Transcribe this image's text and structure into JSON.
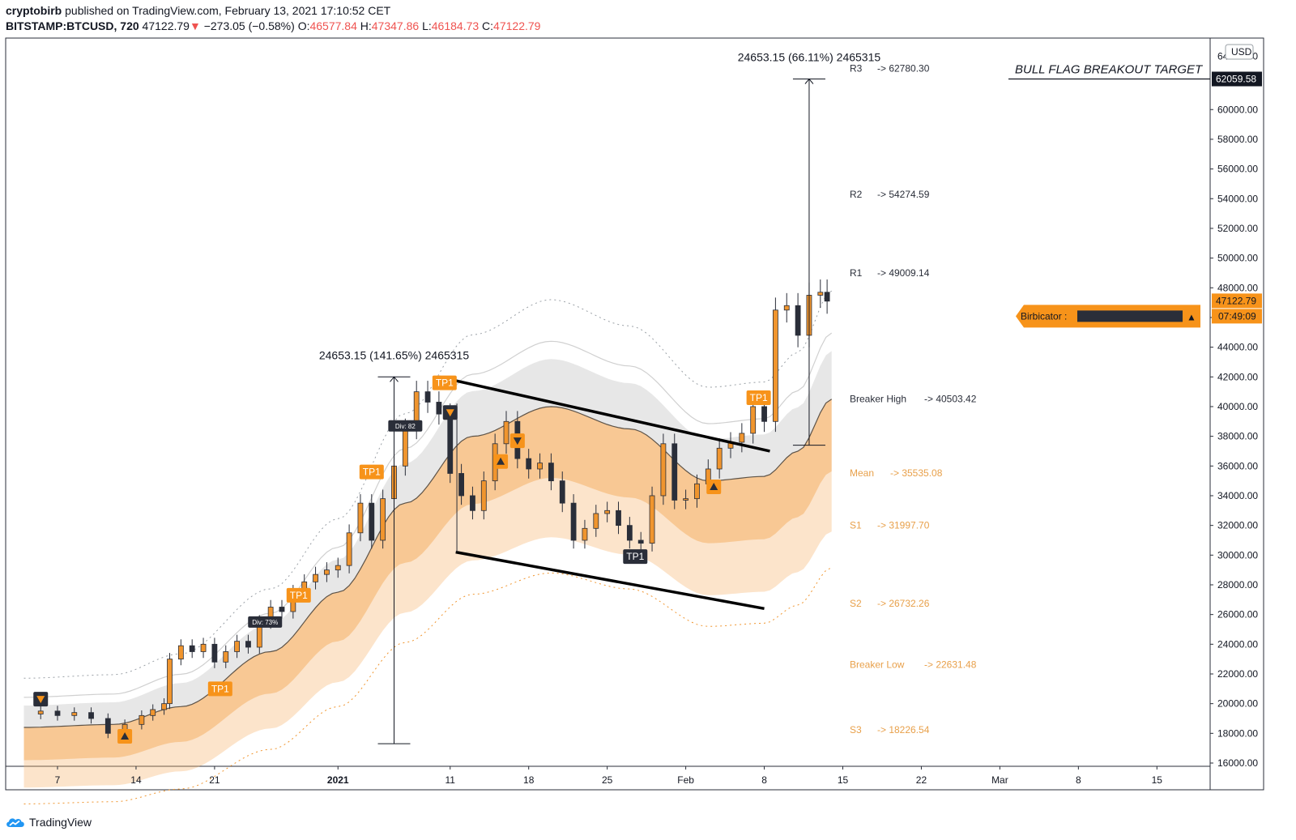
{
  "header": {
    "author": "cryptobirb",
    "published_text": "published on TradingView.com, February 13, 2021 17:10:52 CET",
    "symbol": "BITSTAMP:BTCUSD, 720",
    "last": "47122.79",
    "arrow": "▼",
    "change": "−273.05 (−0.58%)",
    "o_label": "O:",
    "o": "46577.84",
    "h_label": "H:",
    "h": "47347.86",
    "l_label": "L:",
    "l": "46184.73",
    "c_label": "C:",
    "c": "47122.79"
  },
  "footer": {
    "brand": "TradingView"
  },
  "colors": {
    "up": "#f0952e",
    "down": "#2a2e39",
    "accent": "#f7931a",
    "label_orange": "#e8a04a",
    "axis_text": "#131722"
  },
  "chart_data": {
    "type": "candlestick",
    "currency": "USD",
    "ylim": [
      15000,
      64000
    ],
    "y_ticks": [
      16000,
      18000,
      20000,
      22000,
      24000,
      26000,
      28000,
      30000,
      32000,
      34000,
      36000,
      38000,
      40000,
      42000,
      44000,
      46000,
      48000,
      50000,
      52000,
      54000,
      56000,
      58000,
      60000
    ],
    "y_tick_labels": [
      "16000.00",
      "18000.00",
      "20000.00",
      "22000.00",
      "24000.00",
      "26000.00",
      "28000.00",
      "30000.00",
      "32000.00",
      "34000.00",
      "36000.00",
      "38000.00",
      "40000.00",
      "42000.00",
      "44000.00",
      "46000.00",
      "48000.00",
      "50000.00",
      "52000.00",
      "54000.00",
      "56000.00",
      "58000.00",
      "60000.00"
    ],
    "y_top_label_partial": "64000.00",
    "x_domain_days": [
      -28,
      80
    ],
    "x_ticks": [
      {
        "day": -25,
        "label": "7",
        "bold": false
      },
      {
        "day": -18,
        "label": "14",
        "bold": false
      },
      {
        "day": -11,
        "label": "21",
        "bold": false
      },
      {
        "day": 0,
        "label": "2021",
        "bold": true
      },
      {
        "day": 10,
        "label": "11",
        "bold": false
      },
      {
        "day": 17,
        "label": "18",
        "bold": false
      },
      {
        "day": 24,
        "label": "25",
        "bold": false
      },
      {
        "day": 31,
        "label": "Feb",
        "bold": false
      },
      {
        "day": 38,
        "label": "8",
        "bold": false
      },
      {
        "day": 45,
        "label": "15",
        "bold": false
      },
      {
        "day": 52,
        "label": "22",
        "bold": false
      },
      {
        "day": 59,
        "label": "Mar",
        "bold": false
      },
      {
        "day": 66,
        "label": "8",
        "bold": false
      },
      {
        "day": 73,
        "label": "15",
        "bold": false
      }
    ],
    "price_path": [
      [
        -28.0,
        19300
      ],
      [
        -26.5,
        19500
      ],
      [
        -25.0,
        19200
      ],
      [
        -23.5,
        19400
      ],
      [
        -22.0,
        19000
      ],
      [
        -20.5,
        18000
      ],
      [
        -19.0,
        18600
      ],
      [
        -17.5,
        19200
      ],
      [
        -16.5,
        19600
      ],
      [
        -15.5,
        20000
      ],
      [
        -15.0,
        23000
      ],
      [
        -14.0,
        23900
      ],
      [
        -13.0,
        23500
      ],
      [
        -12.0,
        24000
      ],
      [
        -11.0,
        22800
      ],
      [
        -10.0,
        23500
      ],
      [
        -9.0,
        24200
      ],
      [
        -8.0,
        23800
      ],
      [
        -7.0,
        25500
      ],
      [
        -6.0,
        26500
      ],
      [
        -5.0,
        26200
      ],
      [
        -4.0,
        27500
      ],
      [
        -3.0,
        28200
      ],
      [
        -2.0,
        28700
      ],
      [
        -1.0,
        29000
      ],
      [
        0.0,
        29300
      ],
      [
        1.0,
        31500
      ],
      [
        2.0,
        33500
      ],
      [
        3.0,
        31000
      ],
      [
        4.0,
        33800
      ],
      [
        5.0,
        36000
      ],
      [
        6.0,
        38500
      ],
      [
        7.0,
        41000
      ],
      [
        8.0,
        40300
      ],
      [
        9.0,
        39500
      ],
      [
        10.0,
        35500
      ],
      [
        11.0,
        34000
      ],
      [
        12.0,
        33000
      ],
      [
        13.0,
        35000
      ],
      [
        14.0,
        37500
      ],
      [
        15.0,
        39000
      ],
      [
        16.0,
        36500
      ],
      [
        17.0,
        35800
      ],
      [
        18.0,
        36200
      ],
      [
        19.0,
        35000
      ],
      [
        20.0,
        33500
      ],
      [
        21.0,
        31000
      ],
      [
        22.0,
        31800
      ],
      [
        23.0,
        32800
      ],
      [
        24.0,
        33000
      ],
      [
        25.0,
        32000
      ],
      [
        26.0,
        31000
      ],
      [
        27.0,
        30800
      ],
      [
        28.0,
        34000
      ],
      [
        29.0,
        37500
      ],
      [
        30.0,
        33700
      ],
      [
        31.0,
        33800
      ],
      [
        32.0,
        34800
      ],
      [
        33.0,
        35800
      ],
      [
        34.0,
        37200
      ],
      [
        35.0,
        37600
      ],
      [
        36.0,
        38200
      ],
      [
        37.0,
        40000
      ],
      [
        38.0,
        39000
      ],
      [
        39.0,
        46500
      ],
      [
        40.0,
        46800
      ],
      [
        41.0,
        44800
      ],
      [
        42.0,
        47500
      ],
      [
        43.0,
        47700
      ],
      [
        43.6,
        47100
      ]
    ],
    "annotations": [
      {
        "text": "24653.15 (141.65%) 2465315",
        "from_price": 17300,
        "to_price": 42000,
        "day": 5
      },
      {
        "text": "24653.15 (66.11%) 2465315",
        "from_price": 37400,
        "to_price": 62059.58,
        "day": 42
      }
    ],
    "pivot_levels": [
      {
        "label": "R3",
        "value": "62780.30",
        "price": 62780.3,
        "orange": false
      },
      {
        "label": "R2",
        "value": "54274.59",
        "price": 54274.59,
        "orange": false
      },
      {
        "label": "R1",
        "value": "49009.14",
        "price": 49009.14,
        "orange": false
      },
      {
        "label": "Breaker High",
        "value": "40503.42",
        "price": 40503.42,
        "orange": false
      },
      {
        "label": "Mean",
        "value": "35535.08",
        "price": 35535.08,
        "orange": true
      },
      {
        "label": "S1",
        "value": "31997.70",
        "price": 31997.7,
        "orange": true
      },
      {
        "label": "S2",
        "value": "26732.26",
        "price": 26732.26,
        "orange": true
      },
      {
        "label": "Breaker Low",
        "value": "22631.48",
        "price": 22631.48,
        "orange": true
      },
      {
        "label": "S3",
        "value": "18226.54",
        "price": 18226.54,
        "orange": true
      }
    ],
    "pivot_arrow": "->",
    "target_text": "BULL FLAG BREAKOUT TARGET",
    "target_price": "62059.58",
    "current_price": "47122.79",
    "countdown": "07:49:09",
    "indicator_label": "Birbicator :",
    "indicator_arrow": "▲",
    "signal_labels": [
      {
        "text": "TP1",
        "day": -10.5,
        "price": 21000,
        "dark": false
      },
      {
        "text": "TP1",
        "day": -3.5,
        "price": 27300,
        "dark": false
      },
      {
        "text": "TP1",
        "day": 3.0,
        "price": 35600,
        "dark": false
      },
      {
        "text": "TP1",
        "day": 9.5,
        "price": 41600,
        "dark": false
      },
      {
        "text": "TP1",
        "day": 26.5,
        "price": 29900,
        "dark": true
      },
      {
        "text": "TP1",
        "day": 37.5,
        "price": 40600,
        "dark": false
      }
    ],
    "div_labels": [
      {
        "text": "Div: 73%",
        "day": -6.5,
        "price": 25500
      },
      {
        "text": "Div: 82",
        "day": 6.0,
        "price": 38700
      }
    ],
    "markers": [
      {
        "type": "down",
        "day": -26.5,
        "price": 20300,
        "dark": true
      },
      {
        "type": "up",
        "day": -19.0,
        "price": 17800,
        "dark": false
      },
      {
        "type": "down",
        "day": 10.0,
        "price": 39600,
        "dark": true
      },
      {
        "type": "up",
        "day": 14.5,
        "price": 36300,
        "dark": false
      },
      {
        "type": "down",
        "day": 16.0,
        "price": 37700,
        "dark": false
      },
      {
        "type": "up",
        "day": 33.5,
        "price": 34600,
        "dark": false
      }
    ]
  }
}
